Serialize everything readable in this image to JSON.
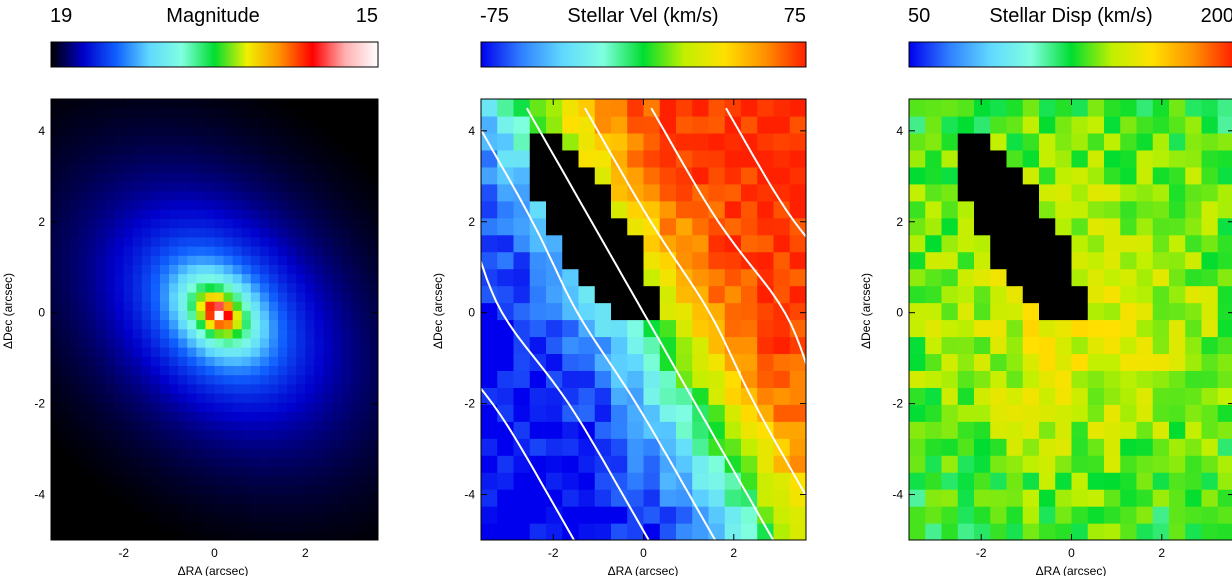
{
  "chart_data": [
    {
      "type": "heatmap",
      "title": "Magnitude",
      "colorbar": {
        "min_label": "19",
        "max_label": "15",
        "min": 19,
        "max": 15,
        "colormap": [
          "#000000",
          "#0000cc",
          "#1060ff",
          "#60d8ff",
          "#80ffe0",
          "#00dd30",
          "#f0f000",
          "#ff9000",
          "#ff0000",
          "#ffb0b0",
          "#ffffff"
        ]
      },
      "xlabel": "ΔRA (arcsec)",
      "ylabel": "ΔDec (arcsec)",
      "xlim": [
        -3.6,
        3.6
      ],
      "ylim": [
        -5.0,
        4.7
      ],
      "xticks": [
        "-2",
        "0",
        "2"
      ],
      "yticks": [
        "4",
        "2",
        "0",
        "-2",
        "-4"
      ],
      "peak": {
        "x": 0.1,
        "y": 0.0,
        "magnitude": 15
      },
      "position_angle_deg": -45,
      "axis_ratio": 0.72
    },
    {
      "type": "heatmap",
      "title": "Stellar Vel (km/s)",
      "colorbar": {
        "min_label": "-75",
        "max_label": "75",
        "min": -75,
        "max": 75,
        "colormap": [
          "#0000ee",
          "#3080ff",
          "#60d8ff",
          "#80ffe0",
          "#00dd30",
          "#c0f000",
          "#ffe000",
          "#ff9000",
          "#ff2000"
        ]
      },
      "xlabel": "ΔRA (arcsec)",
      "ylabel": "ΔDec (arcsec)",
      "xlim": [
        -3.6,
        3.6
      ],
      "ylim": [
        -5.0,
        4.7
      ],
      "xticks": [
        "-2",
        "0",
        "2"
      ],
      "yticks": [
        "4",
        "2",
        "0",
        "-2",
        "-4"
      ],
      "kinematic_axis_pa_deg": 30,
      "masked_region": "black (dust lane)"
    },
    {
      "type": "heatmap",
      "title": "Stellar Disp (km/s)",
      "colorbar": {
        "min_label": "50",
        "max_label": "200",
        "min": 50,
        "max": 200,
        "colormap": [
          "#0000ee",
          "#3080ff",
          "#60d8ff",
          "#80ffe0",
          "#00dd30",
          "#c0f000",
          "#ffe000",
          "#ff9000",
          "#ff2000"
        ]
      },
      "xlabel": "ΔRA (arcsec)",
      "ylabel": "ΔDec (arcsec)",
      "xlim": [
        -3.6,
        3.6
      ],
      "ylim": [
        -5.0,
        4.7
      ],
      "xticks": [
        "-2",
        "0",
        "2"
      ],
      "yticks": [
        "4",
        "2",
        "0",
        "-2",
        "-4"
      ],
      "masked_region": "black (dust lane)"
    }
  ]
}
